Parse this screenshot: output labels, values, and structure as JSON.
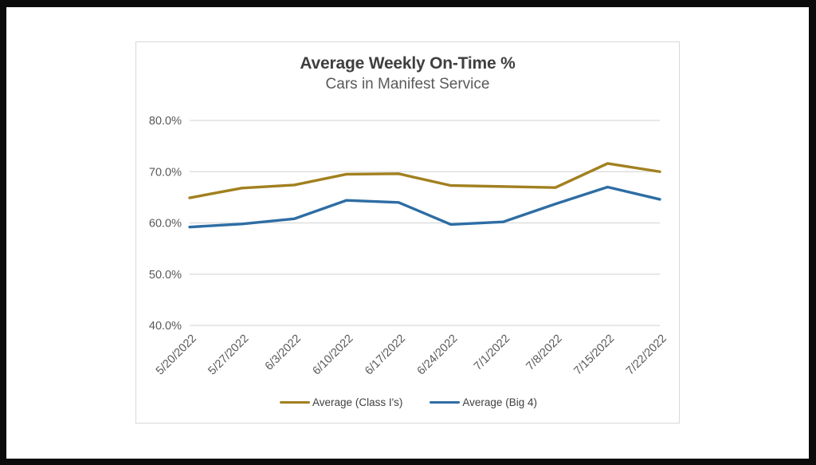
{
  "frame": {
    "background_color": "#0b0b0b",
    "panel_color": "#ffffff"
  },
  "chart_data": {
    "type": "line",
    "title": "Average Weekly On-Time %",
    "subtitle": "Cars in Manifest Service",
    "categories": [
      "5/20/2022",
      "5/27/2022",
      "6/3/2022",
      "6/10/2022",
      "6/17/2022",
      "6/24/2022",
      "7/1/2022",
      "7/8/2022",
      "7/15/2022",
      "7/22/2022"
    ],
    "series": [
      {
        "name": "Average (Class I's)",
        "color": "#A1801F",
        "values": [
          64.9,
          66.8,
          67.4,
          69.5,
          69.6,
          67.3,
          67.1,
          66.9,
          71.6,
          70.0
        ]
      },
      {
        "name": "Average (Big 4)",
        "color": "#2E6DA4",
        "values": [
          59.2,
          59.8,
          60.8,
          64.4,
          64.0,
          59.7,
          60.2,
          63.7,
          67.0,
          64.6
        ]
      }
    ],
    "ylim": [
      40,
      80
    ],
    "yticks": [
      {
        "value": 80,
        "label": "80.0%"
      },
      {
        "value": 70,
        "label": "70.0%"
      },
      {
        "value": 60,
        "label": "60.0%"
      },
      {
        "value": 50,
        "label": "50.0%"
      },
      {
        "value": 40,
        "label": "40.0%"
      }
    ],
    "x_tick_rotation_deg": -45,
    "grid": "horizontal",
    "legend_position": "bottom",
    "colors": {
      "grid": "#D9D9D9",
      "chart_border": "#D9D9D9",
      "title_text": "#3F3F3F",
      "subtitle_text": "#595959",
      "axis_text": "#595959",
      "legend_text": "#404040"
    }
  }
}
